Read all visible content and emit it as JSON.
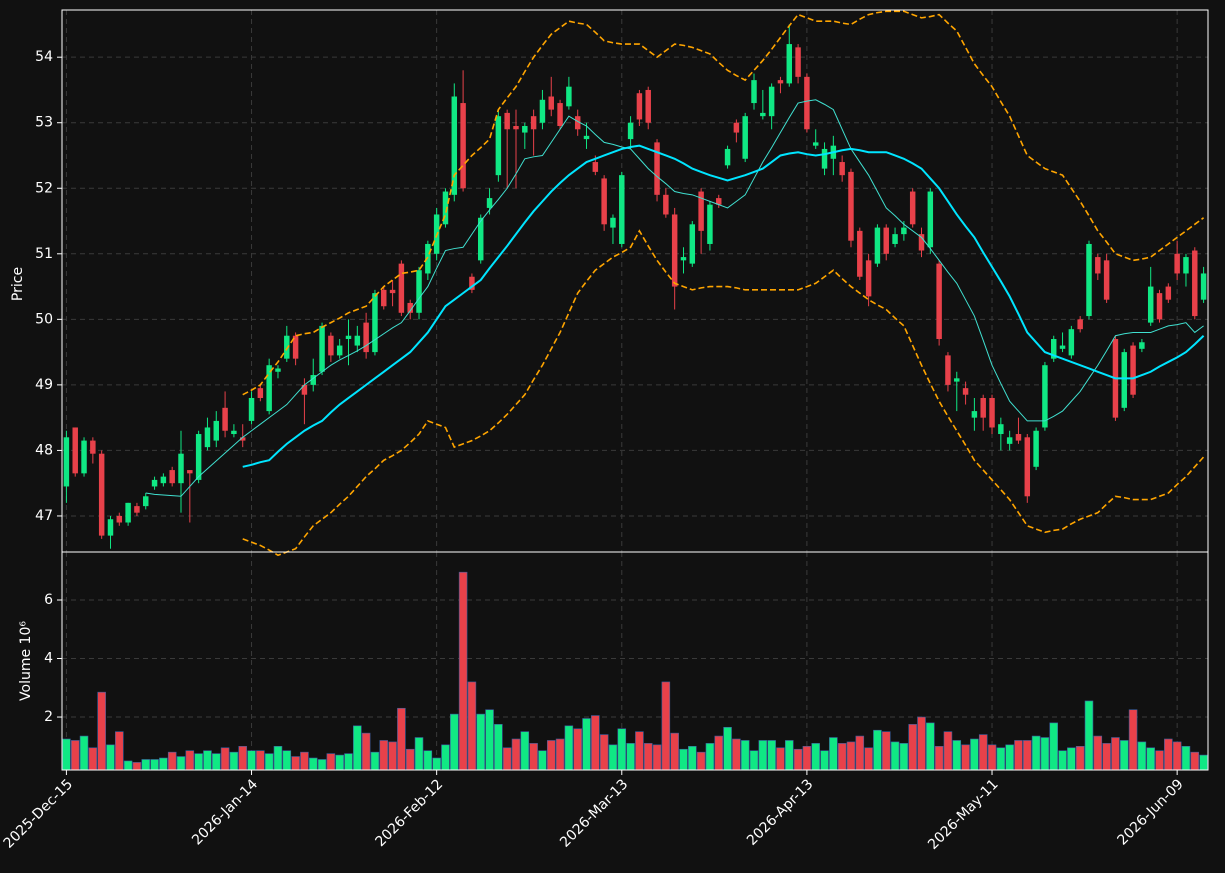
{
  "chart_data": {
    "type": "candlestick",
    "ylabel": "Price",
    "ylim": [
      46.45,
      54.72
    ],
    "yticks": [
      47,
      48,
      49,
      50,
      51,
      52,
      53,
      54
    ],
    "grid": true,
    "up_color": "#10e884",
    "down_color": "#e8414a",
    "categories": [
      "2025-Dec-15",
      null,
      null,
      null,
      null,
      null,
      null,
      null,
      null,
      null,
      null,
      null,
      null,
      null,
      null,
      null,
      null,
      null,
      null,
      null,
      null,
      "2026-Jan-14",
      null,
      null,
      null,
      null,
      null,
      null,
      null,
      null,
      null,
      null,
      null,
      null,
      null,
      null,
      null,
      null,
      null,
      null,
      null,
      null,
      "2026-Feb-12",
      null,
      null,
      null,
      null,
      null,
      null,
      null,
      null,
      null,
      null,
      null,
      null,
      null,
      null,
      null,
      null,
      null,
      null,
      null,
      null,
      "2026-Mar-13",
      null,
      null,
      null,
      null,
      null,
      null,
      null,
      null,
      null,
      null,
      null,
      null,
      null,
      null,
      null,
      null,
      null,
      null,
      null,
      null,
      "2026-Apr-13",
      null,
      null,
      null,
      null,
      null,
      null,
      null,
      null,
      null,
      null,
      null,
      null,
      null,
      null,
      null,
      null,
      null,
      null,
      null,
      null,
      "2026-May-11",
      null,
      null,
      null,
      null,
      null,
      null,
      null,
      null,
      null,
      null,
      null,
      null,
      null,
      null,
      null,
      null,
      null,
      null,
      null,
      null,
      "2026-Jun-09",
      null,
      null,
      null
    ],
    "open": [
      47.45,
      48.35,
      47.65,
      48.15,
      47.95,
      46.7,
      47.0,
      46.9,
      47.15,
      47.15,
      47.45,
      47.5,
      47.7,
      47.5,
      47.7,
      47.55,
      48.05,
      48.15,
      48.65,
      48.25,
      48.2,
      48.45,
      48.95,
      48.6,
      49.2,
      49.4,
      49.75,
      49.0,
      49.0,
      49.2,
      49.75,
      49.45,
      49.7,
      49.6,
      49.95,
      49.5,
      50.45,
      50.45,
      50.85,
      50.25,
      50.1,
      50.7,
      51.0,
      51.45,
      51.9,
      53.3,
      50.65,
      50.9,
      51.7,
      52.2,
      53.15,
      52.95,
      52.85,
      53.1,
      53.0,
      53.4,
      53.3,
      53.25,
      53.1,
      52.75,
      52.4,
      52.15,
      51.4,
      51.15,
      52.75,
      53.45,
      53.5,
      52.7,
      51.9,
      51.6,
      50.9,
      50.85,
      51.95,
      51.15,
      51.85,
      52.35,
      53.0,
      52.45,
      53.3,
      53.1,
      53.1,
      53.65,
      53.6,
      54.15,
      53.7,
      52.65,
      52.3,
      52.45,
      52.4,
      52.25,
      51.35,
      50.9,
      50.85,
      51.4,
      51.15,
      51.3,
      51.95,
      51.3,
      51.1,
      50.85,
      49.45,
      49.05,
      48.95,
      48.5,
      48.8,
      48.8,
      48.25,
      48.1,
      48.25,
      48.2,
      47.75,
      48.35,
      49.4,
      49.55,
      49.45,
      50.0,
      50.05,
      50.95,
      50.9,
      49.7,
      48.65,
      49.6,
      49.55,
      49.95,
      50.4,
      50.5,
      51.0,
      50.7,
      51.05,
      50.3
    ],
    "high": [
      48.3,
      48.35,
      48.2,
      48.2,
      48.0,
      47.0,
      47.05,
      47.2,
      47.2,
      47.35,
      47.6,
      47.65,
      47.75,
      48.3,
      47.7,
      48.3,
      48.5,
      48.6,
      48.9,
      48.4,
      48.4,
      48.9,
      49.0,
      49.4,
      49.3,
      49.9,
      49.8,
      49.1,
      49.4,
      49.95,
      49.8,
      49.7,
      50.0,
      49.9,
      50.1,
      50.45,
      50.5,
      50.6,
      50.9,
      50.3,
      50.8,
      51.2,
      51.7,
      52.0,
      53.6,
      53.8,
      50.7,
      51.6,
      52.0,
      53.2,
      53.2,
      53.2,
      53.0,
      53.2,
      53.5,
      53.7,
      53.35,
      53.7,
      53.2,
      53.0,
      52.5,
      52.2,
      51.6,
      52.25,
      53.1,
      53.5,
      53.55,
      52.75,
      52.0,
      51.7,
      51.1,
      51.5,
      52.0,
      51.8,
      51.9,
      52.65,
      53.05,
      53.15,
      53.75,
      53.5,
      53.6,
      53.7,
      54.5,
      54.2,
      53.75,
      52.9,
      52.7,
      52.8,
      52.5,
      52.3,
      51.4,
      51.0,
      51.45,
      51.45,
      51.4,
      51.5,
      52.0,
      51.4,
      52.0,
      50.9,
      49.5,
      49.2,
      49.05,
      48.8,
      48.85,
      48.85,
      48.5,
      48.3,
      48.5,
      48.25,
      48.35,
      49.35,
      49.75,
      49.8,
      49.9,
      50.05,
      51.2,
      51.0,
      51.0,
      49.75,
      49.55,
      49.65,
      49.7,
      50.8,
      50.45,
      50.55,
      51.2,
      51.0,
      51.1,
      50.8
    ],
    "low": [
      47.2,
      47.6,
      47.6,
      47.8,
      46.65,
      46.5,
      46.85,
      46.85,
      47.0,
      47.1,
      47.4,
      47.45,
      47.45,
      47.05,
      46.9,
      47.5,
      48.0,
      48.05,
      48.2,
      48.2,
      48.05,
      48.4,
      48.75,
      48.55,
      49.1,
      49.35,
      49.3,
      48.4,
      48.9,
      49.15,
      49.35,
      49.4,
      49.3,
      49.5,
      49.4,
      49.45,
      50.15,
      50.2,
      50.05,
      50.0,
      50.0,
      50.6,
      50.9,
      51.4,
      51.8,
      51.95,
      50.4,
      50.85,
      51.6,
      52.1,
      52.0,
      52.0,
      52.6,
      52.5,
      52.9,
      53.1,
      52.9,
      53.2,
      52.8,
      52.6,
      52.2,
      51.35,
      51.15,
      51.1,
      52.6,
      52.95,
      52.9,
      51.8,
      51.55,
      50.15,
      50.7,
      50.8,
      51.0,
      51.05,
      51.7,
      52.3,
      52.7,
      52.4,
      53.2,
      53.05,
      52.9,
      53.45,
      53.55,
      53.6,
      52.85,
      52.6,
      52.2,
      52.2,
      52.1,
      51.1,
      50.6,
      50.2,
      50.8,
      50.9,
      51.1,
      51.2,
      51.4,
      50.95,
      51.0,
      49.6,
      48.9,
      48.6,
      48.7,
      48.3,
      48.3,
      48.25,
      48.0,
      48.0,
      48.1,
      47.2,
      47.7,
      48.3,
      49.35,
      49.5,
      49.4,
      49.8,
      50.0,
      50.6,
      50.25,
      48.45,
      48.6,
      48.8,
      49.5,
      49.9,
      49.95,
      50.25,
      50.6,
      50.5,
      50.0,
      50.25
    ],
    "close": [
      48.2,
      47.65,
      48.15,
      47.95,
      46.7,
      46.95,
      46.9,
      47.2,
      47.05,
      47.3,
      47.55,
      47.6,
      47.5,
      47.95,
      47.65,
      48.25,
      48.35,
      48.45,
      48.3,
      48.3,
      48.15,
      48.8,
      48.8,
      49.3,
      49.25,
      49.75,
      49.4,
      48.85,
      49.15,
      49.9,
      49.45,
      49.6,
      49.75,
      49.75,
      49.5,
      50.4,
      50.2,
      50.4,
      50.1,
      50.1,
      50.75,
      51.15,
      51.6,
      51.95,
      53.4,
      52.0,
      50.45,
      51.55,
      51.85,
      53.1,
      52.9,
      52.9,
      52.95,
      52.9,
      53.35,
      53.2,
      52.95,
      53.55,
      52.9,
      52.8,
      52.25,
      51.45,
      51.55,
      52.2,
      53.0,
      53.05,
      53.0,
      51.9,
      51.6,
      50.5,
      50.95,
      51.45,
      51.35,
      51.75,
      51.75,
      52.6,
      52.85,
      53.1,
      53.65,
      53.15,
      53.55,
      53.6,
      54.2,
      53.7,
      52.9,
      52.7,
      52.6,
      52.65,
      52.2,
      51.2,
      50.65,
      50.35,
      51.4,
      51.0,
      51.3,
      51.4,
      51.45,
      51.05,
      51.95,
      49.7,
      49.0,
      49.1,
      48.85,
      48.6,
      48.5,
      48.35,
      48.4,
      48.2,
      48.15,
      47.3,
      48.3,
      49.3,
      49.7,
      49.6,
      49.85,
      49.85,
      51.15,
      50.7,
      50.3,
      48.5,
      49.5,
      48.85,
      49.65,
      50.5,
      50.0,
      50.3,
      50.7,
      50.95,
      50.05,
      50.7
    ],
    "lines": [
      {
        "color": "#40e0d0",
        "width": 1,
        "style": "solid",
        "values": [
          null,
          null,
          null,
          null,
          null,
          null,
          null,
          null,
          null,
          47.35,
          47.33,
          47.32,
          47.31,
          47.3,
          47.45,
          47.6,
          47.72,
          47.84,
          47.96,
          48.08,
          48.2,
          48.3,
          48.4,
          48.5,
          48.6,
          48.7,
          48.85,
          49.0,
          49.1,
          49.2,
          49.3,
          49.38,
          49.45,
          49.52,
          49.6,
          49.69,
          49.78,
          49.87,
          49.95,
          50.13,
          50.32,
          50.5,
          50.78,
          51.05,
          51.08,
          51.1,
          51.3,
          51.5,
          51.67,
          51.83,
          52.0,
          52.22,
          52.45,
          52.48,
          52.5,
          52.7,
          52.9,
          53.1,
          53.02,
          52.95,
          52.82,
          52.7,
          52.67,
          52.63,
          52.6,
          52.45,
          52.3,
          52.18,
          52.07,
          51.95,
          51.92,
          51.9,
          51.85,
          51.8,
          51.75,
          51.7,
          51.8,
          51.9,
          52.15,
          52.4,
          52.62,
          52.85,
          53.08,
          53.3,
          53.33,
          53.35,
          53.28,
          53.2,
          52.9,
          52.6,
          52.4,
          52.2,
          51.95,
          51.7,
          51.58,
          51.45,
          51.35,
          51.25,
          51.08,
          50.9,
          50.72,
          50.55,
          50.3,
          50.05,
          49.68,
          49.3,
          49.02,
          48.75,
          48.6,
          48.45,
          48.45,
          48.45,
          48.52,
          48.6,
          48.75,
          48.9,
          49.1,
          49.3,
          49.52,
          49.75,
          49.78,
          49.8,
          49.8,
          49.8,
          49.85,
          49.9,
          49.92,
          49.95,
          49.8,
          49.9
        ]
      },
      {
        "color": "#00e5ff",
        "width": 2,
        "style": "solid",
        "values": [
          null,
          null,
          null,
          null,
          null,
          null,
          null,
          null,
          null,
          null,
          null,
          null,
          null,
          null,
          null,
          null,
          null,
          null,
          null,
          null,
          47.75,
          47.78,
          47.82,
          47.85,
          47.98,
          48.1,
          48.2,
          48.3,
          48.38,
          48.45,
          48.58,
          48.7,
          48.8,
          48.9,
          49.0,
          49.1,
          49.2,
          49.3,
          49.4,
          49.5,
          49.65,
          49.8,
          50.0,
          50.2,
          50.3,
          50.4,
          50.5,
          50.6,
          50.78,
          50.95,
          51.12,
          51.3,
          51.48,
          51.65,
          51.8,
          51.95,
          52.08,
          52.2,
          52.3,
          52.4,
          52.45,
          52.5,
          52.55,
          52.6,
          52.63,
          52.65,
          52.6,
          52.55,
          52.5,
          52.45,
          52.38,
          52.3,
          52.25,
          52.2,
          52.16,
          52.12,
          52.16,
          52.2,
          52.25,
          52.3,
          52.4,
          52.5,
          52.53,
          52.55,
          52.52,
          52.5,
          52.52,
          52.55,
          52.58,
          52.6,
          52.58,
          52.55,
          52.55,
          52.55,
          52.5,
          52.45,
          52.38,
          52.3,
          52.15,
          52.0,
          51.8,
          51.6,
          51.42,
          51.25,
          51.02,
          50.8,
          50.58,
          50.35,
          50.08,
          49.8,
          49.65,
          49.5,
          49.45,
          49.4,
          49.35,
          49.3,
          49.25,
          49.2,
          49.15,
          49.1,
          49.1,
          49.1,
          49.15,
          49.2,
          49.28,
          49.35,
          49.42,
          49.5,
          49.62,
          49.75
        ]
      },
      {
        "color": "#ffa500",
        "width": 1.6,
        "style": "dashed",
        "values": [
          null,
          null,
          null,
          null,
          null,
          null,
          null,
          null,
          null,
          null,
          null,
          null,
          null,
          null,
          null,
          null,
          null,
          null,
          null,
          null,
          48.85,
          48.92,
          49.0,
          49.18,
          49.35,
          49.55,
          49.75,
          49.78,
          49.8,
          49.88,
          49.95,
          50.02,
          50.1,
          50.15,
          50.2,
          50.35,
          50.5,
          50.6,
          50.7,
          50.72,
          50.75,
          50.95,
          51.28,
          51.6,
          52.2,
          52.35,
          52.5,
          52.62,
          52.75,
          53.2,
          53.38,
          53.55,
          53.78,
          54.0,
          54.18,
          54.35,
          54.45,
          54.55,
          54.52,
          54.5,
          54.38,
          54.25,
          54.22,
          54.2,
          54.2,
          54.2,
          54.1,
          54.0,
          54.1,
          54.2,
          54.18,
          54.15,
          54.1,
          54.05,
          53.92,
          53.8,
          53.72,
          53.65,
          53.8,
          53.95,
          54.12,
          54.3,
          54.48,
          54.65,
          54.6,
          54.55,
          54.55,
          54.55,
          54.52,
          54.5,
          54.58,
          54.65,
          54.68,
          54.7,
          54.7,
          54.7,
          54.65,
          54.6,
          54.62,
          54.65,
          54.52,
          54.4,
          54.15,
          53.9,
          53.72,
          53.55,
          53.32,
          53.1,
          52.8,
          52.5,
          52.4,
          52.3,
          52.25,
          52.2,
          52.0,
          51.8,
          51.58,
          51.35,
          51.18,
          51.0,
          50.95,
          50.9,
          50.92,
          50.95,
          51.05,
          51.15,
          51.25,
          51.35,
          51.45,
          51.55
        ]
      },
      {
        "color": "#ffa500",
        "width": 1.6,
        "style": "dashed",
        "values": [
          null,
          null,
          null,
          null,
          null,
          null,
          null,
          null,
          null,
          null,
          null,
          null,
          null,
          null,
          null,
          null,
          null,
          null,
          null,
          null,
          46.65,
          46.6,
          46.55,
          46.48,
          46.4,
          46.45,
          46.5,
          46.68,
          46.85,
          46.95,
          47.05,
          47.18,
          47.3,
          47.45,
          47.6,
          47.72,
          47.85,
          47.92,
          48.0,
          48.12,
          48.25,
          48.45,
          48.4,
          48.35,
          48.05,
          48.1,
          48.15,
          48.22,
          48.3,
          48.42,
          48.55,
          48.7,
          48.85,
          49.08,
          49.3,
          49.55,
          49.8,
          50.1,
          50.4,
          50.58,
          50.75,
          50.85,
          50.95,
          51.02,
          51.1,
          51.35,
          51.12,
          50.9,
          50.72,
          50.55,
          50.5,
          50.45,
          50.48,
          50.5,
          50.5,
          50.5,
          50.48,
          50.45,
          50.45,
          50.45,
          50.45,
          50.45,
          50.45,
          50.45,
          50.5,
          50.55,
          50.65,
          50.75,
          50.62,
          50.5,
          50.4,
          50.3,
          50.22,
          50.15,
          50.02,
          49.9,
          49.6,
          49.3,
          49.02,
          48.75,
          48.52,
          48.3,
          48.08,
          47.85,
          47.7,
          47.55,
          47.4,
          47.25,
          47.05,
          46.85,
          46.8,
          46.75,
          46.78,
          46.8,
          46.88,
          46.95,
          47.0,
          47.05,
          47.18,
          47.3,
          47.28,
          47.25,
          47.25,
          47.25,
          47.3,
          47.35,
          47.48,
          47.6,
          47.75,
          47.9
        ]
      }
    ],
    "volume": {
      "ylabel": "Volume  10⁶",
      "ylim": [
        0.19,
        7.64
      ],
      "yticks": [
        2,
        4,
        6
      ],
      "values": [
        1.25,
        1.2,
        1.35,
        0.95,
        2.85,
        1.05,
        1.5,
        0.5,
        0.45,
        0.55,
        0.55,
        0.6,
        0.8,
        0.65,
        0.85,
        0.75,
        0.85,
        0.75,
        0.95,
        0.8,
        1.0,
        0.85,
        0.85,
        0.75,
        1.0,
        0.85,
        0.65,
        0.8,
        0.6,
        0.55,
        0.75,
        0.7,
        0.75,
        1.7,
        1.45,
        0.8,
        1.2,
        1.15,
        2.3,
        0.9,
        1.3,
        0.85,
        0.6,
        1.05,
        2.1,
        6.95,
        3.2,
        2.1,
        2.25,
        1.75,
        0.95,
        1.25,
        1.5,
        1.1,
        0.85,
        1.2,
        1.25,
        1.7,
        1.6,
        1.95,
        2.05,
        1.4,
        1.05,
        1.6,
        1.1,
        1.5,
        1.1,
        1.05,
        3.2,
        1.45,
        0.9,
        1.0,
        0.8,
        1.1,
        1.35,
        1.65,
        1.25,
        1.2,
        0.85,
        1.2,
        1.2,
        0.95,
        1.2,
        0.9,
        1.0,
        1.1,
        0.85,
        1.3,
        1.1,
        1.15,
        1.35,
        0.95,
        1.55,
        1.5,
        1.15,
        1.1,
        1.75,
        2.0,
        1.8,
        1.0,
        1.5,
        1.2,
        1.05,
        1.25,
        1.4,
        1.05,
        0.95,
        1.05,
        1.2,
        1.2,
        1.35,
        1.3,
        1.8,
        0.85,
        0.95,
        1.0,
        2.55,
        1.35,
        1.1,
        1.3,
        1.2,
        2.25,
        1.15,
        0.95,
        0.85,
        1.25,
        1.15,
        1.0,
        0.8,
        0.7
      ]
    }
  }
}
